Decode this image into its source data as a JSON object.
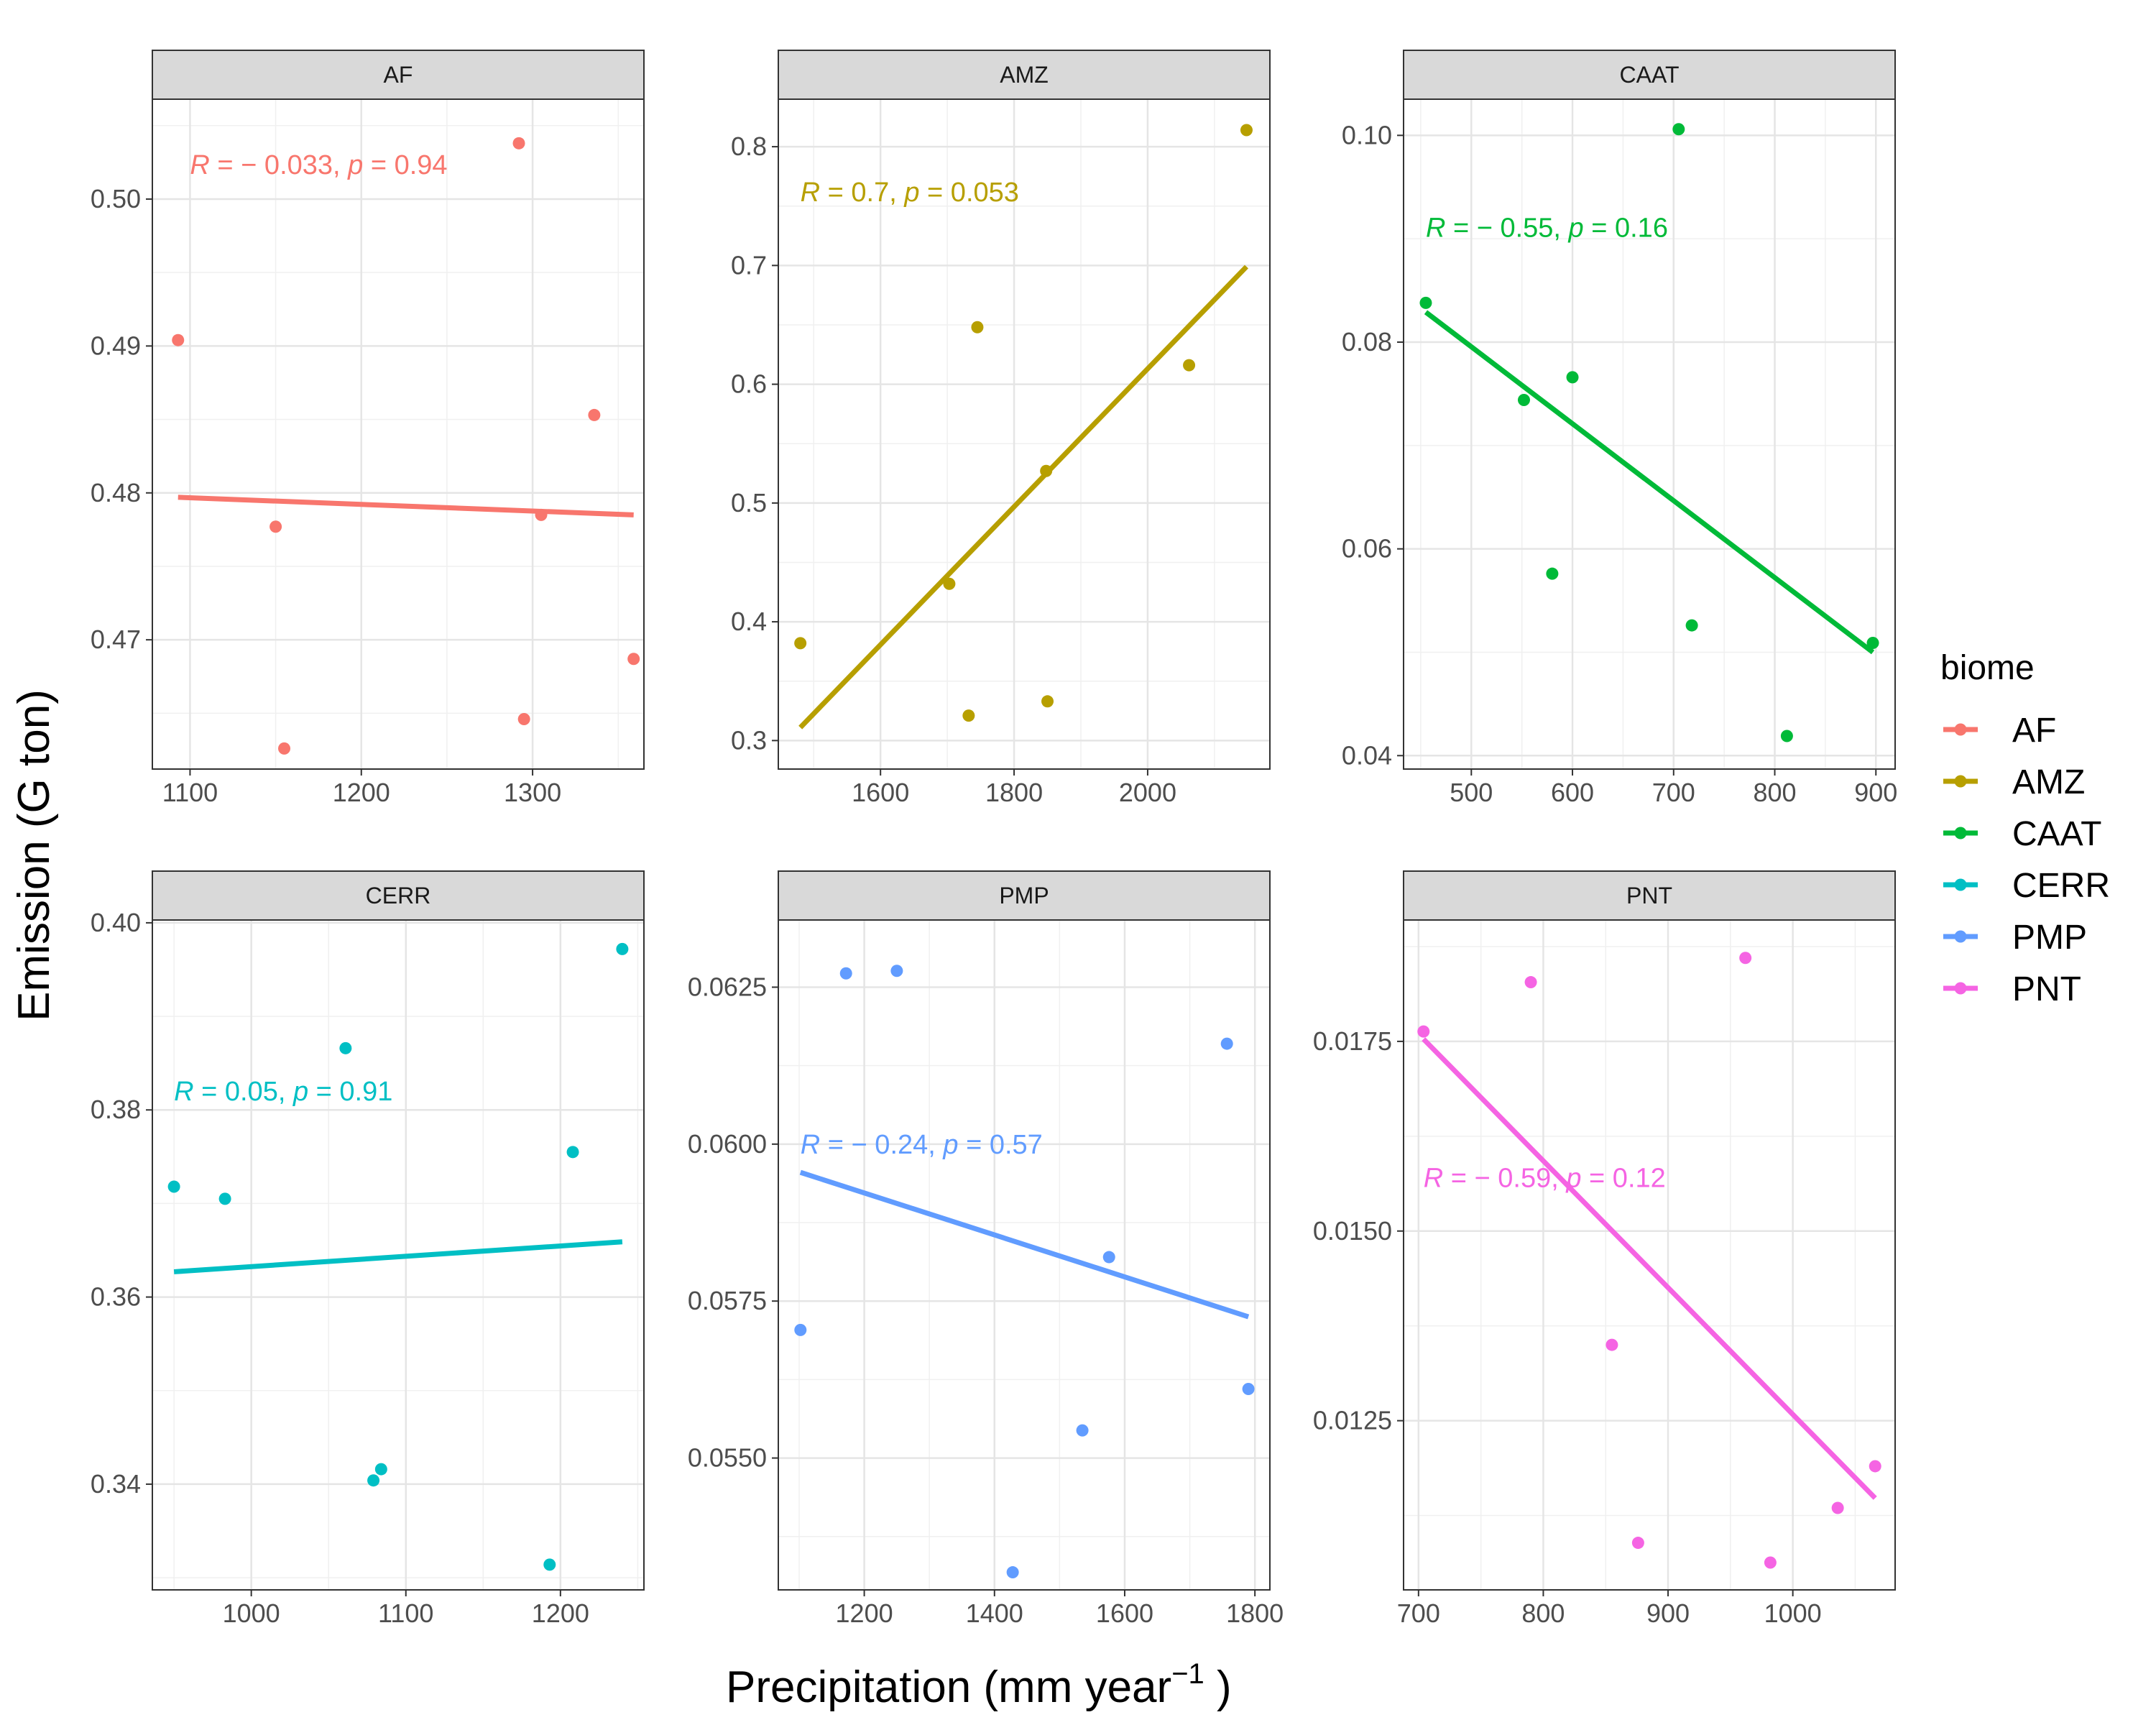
{
  "figure": {
    "xlabel_main": "Precipitation (mm  year",
    "xlabel_sup": "−1",
    "xlabel_close": " )",
    "ylabel": "Emission (G ton)",
    "legend_title": "biome"
  },
  "chart_data": [
    {
      "type": "scatter",
      "panel": "AF",
      "color": "#F8766D",
      "xlim": [
        1078,
        1365
      ],
      "ylim": [
        0.4612,
        0.5068
      ],
      "xticks": [
        1100,
        1200,
        1300
      ],
      "yticks": [
        0.47,
        0.48,
        0.49,
        0.5
      ],
      "yfmt": 2,
      "points": [
        [
          1093,
          0.4904
        ],
        [
          1150,
          0.4777
        ],
        [
          1155,
          0.4626
        ],
        [
          1292,
          0.5038
        ],
        [
          1295,
          0.4646
        ],
        [
          1305,
          0.4785
        ],
        [
          1336,
          0.4853
        ],
        [
          1359,
          0.4687
        ]
      ],
      "fit": [
        [
          1093,
          0.4797
        ],
        [
          1359,
          0.4785
        ]
      ],
      "annotation": {
        "r": "− 0.033",
        "p": "0.94"
      },
      "annot_pos": [
        1100,
        0.5017
      ]
    },
    {
      "type": "scatter",
      "panel": "AMZ",
      "color": "#B79F00",
      "xlim": [
        1447,
        2183
      ],
      "ylim": [
        0.276,
        0.84
      ],
      "xticks": [
        1600,
        1800,
        2000
      ],
      "yticks": [
        0.3,
        0.4,
        0.5,
        0.6,
        0.7,
        0.8
      ],
      "yfmt": 1,
      "points": [
        [
          1480,
          0.382
        ],
        [
          1703,
          0.432
        ],
        [
          1732,
          0.321
        ],
        [
          1745,
          0.648
        ],
        [
          1848,
          0.527
        ],
        [
          1850,
          0.333
        ],
        [
          2062,
          0.616
        ],
        [
          2148,
          0.814
        ]
      ],
      "fit": [
        [
          1480,
          0.311
        ],
        [
          2148,
          0.699
        ]
      ],
      "annotation": {
        "r": "0.7",
        "p": "0.053"
      },
      "annot_pos": [
        1480,
        0.754
      ]
    },
    {
      "type": "scatter",
      "panel": "CAAT",
      "color": "#00BA38",
      "xlim": [
        433,
        919
      ],
      "ylim": [
        0.0387,
        0.1035
      ],
      "xticks": [
        500,
        600,
        700,
        800,
        900
      ],
      "yticks": [
        0.04,
        0.06,
        0.08,
        0.1
      ],
      "yfmt": 2,
      "points": [
        [
          455,
          0.0838
        ],
        [
          552,
          0.0744
        ],
        [
          580,
          0.0576
        ],
        [
          600,
          0.0766
        ],
        [
          705,
          0.1006
        ],
        [
          718,
          0.0526
        ],
        [
          812,
          0.0419
        ],
        [
          897,
          0.0509
        ]
      ],
      "fit": [
        [
          455,
          0.0829
        ],
        [
          897,
          0.05
        ]
      ],
      "annotation": {
        "r": "− 0.55",
        "p": "0.16"
      },
      "annot_pos": [
        455,
        0.0902
      ]
    },
    {
      "type": "scatter",
      "panel": "CERR",
      "color": "#00BFC4",
      "xlim": [
        936,
        1254
      ],
      "ylim": [
        0.3287,
        0.4003
      ],
      "xticks": [
        1000,
        1100,
        1200
      ],
      "yticks": [
        0.34,
        0.36,
        0.38,
        0.4
      ],
      "yfmt": 2,
      "points": [
        [
          950,
          0.3718
        ],
        [
          983,
          0.3705
        ],
        [
          1061,
          0.3866
        ],
        [
          1079,
          0.3404
        ],
        [
          1084,
          0.3416
        ],
        [
          1193,
          0.3314
        ],
        [
          1208,
          0.3755
        ],
        [
          1240,
          0.3972
        ]
      ],
      "fit": [
        [
          950,
          0.3627
        ],
        [
          1240,
          0.3659
        ]
      ],
      "annotation": {
        "r": "0.05",
        "p": "0.91"
      },
      "annot_pos": [
        950,
        0.381
      ]
    },
    {
      "type": "scatter",
      "panel": "PMP",
      "color": "#619CFF",
      "xlim": [
        1068,
        1823
      ],
      "ylim": [
        0.0529,
        0.06357
      ],
      "xticks": [
        1200,
        1400,
        1600,
        1800
      ],
      "yticks": [
        0.055,
        0.0575,
        0.06,
        0.0625
      ],
      "yfmt": 4,
      "points": [
        [
          1102,
          0.05704
        ],
        [
          1172,
          0.06272
        ],
        [
          1250,
          0.06276
        ],
        [
          1428,
          0.05318
        ],
        [
          1535,
          0.05544
        ],
        [
          1576,
          0.0582
        ],
        [
          1757,
          0.0616
        ],
        [
          1790,
          0.0561
        ]
      ],
      "fit": [
        [
          1102,
          0.05955
        ],
        [
          1790,
          0.05725
        ]
      ],
      "annotation": {
        "r": "− 0.24",
        "p": "0.57"
      },
      "annot_pos": [
        1102,
        0.05985
      ]
    },
    {
      "type": "scatter",
      "panel": "PNT",
      "color": "#F564E3",
      "xlim": [
        688,
        1082
      ],
      "ylim": [
        0.01027,
        0.0191
      ],
      "xticks": [
        700,
        800,
        900,
        1000
      ],
      "yticks": [
        0.0125,
        0.015,
        0.0175
      ],
      "yfmt": 4,
      "points": [
        [
          704,
          0.01763
        ],
        [
          790,
          0.01828
        ],
        [
          855,
          0.0135
        ],
        [
          876,
          0.01089
        ],
        [
          962,
          0.0186
        ],
        [
          982,
          0.01063
        ],
        [
          1036,
          0.01135
        ],
        [
          1066,
          0.0119
        ]
      ],
      "fit": [
        [
          704,
          0.01753
        ],
        [
          1066,
          0.01148
        ]
      ],
      "annotation": {
        "r": "− 0.59",
        "p": "0.12"
      },
      "annot_pos": [
        704,
        0.01558
      ]
    }
  ],
  "legend": [
    {
      "label": "AF",
      "color": "#F8766D"
    },
    {
      "label": "AMZ",
      "color": "#B79F00"
    },
    {
      "label": "CAAT",
      "color": "#00BA38"
    },
    {
      "label": "CERR",
      "color": "#00BFC4"
    },
    {
      "label": "PMP",
      "color": "#619CFF"
    },
    {
      "label": "PNT",
      "color": "#F564E3"
    }
  ]
}
